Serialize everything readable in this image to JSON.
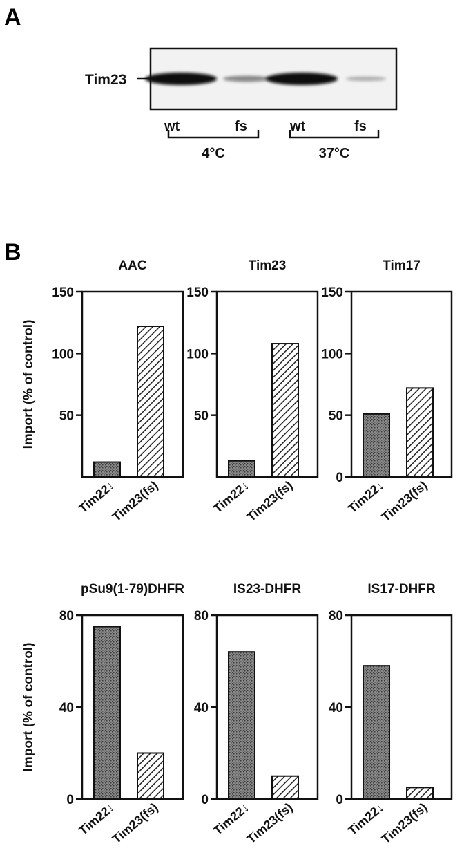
{
  "panel_a": {
    "letter": "A",
    "band_label": "Tim23",
    "lanes": [
      "wt",
      "fs",
      "wt",
      "fs"
    ],
    "lane_band_intensity": [
      1.0,
      0.25,
      1.0,
      0.05
    ],
    "groups": [
      "4°C",
      "37°C"
    ]
  },
  "panel_b": {
    "letter": "B"
  },
  "colors": {
    "filled_bar": "#7a7a7a",
    "hatch_stroke": "#222222",
    "frame": "#111111"
  },
  "chart_data": [
    {
      "type": "bar",
      "title": "AAC",
      "ylabel": "Import (% of control)",
      "categories": [
        "Tim22↓",
        "Tim23(fs)"
      ],
      "values": [
        12,
        122
      ],
      "yticks": [
        50,
        100,
        150
      ],
      "ylim": [
        0,
        150
      ],
      "bar_styles": [
        "filled",
        "hatched"
      ]
    },
    {
      "type": "bar",
      "title": "Tim23",
      "ylabel": "",
      "categories": [
        "Tim22↓",
        "Tim23(fs)"
      ],
      "values": [
        13,
        108
      ],
      "yticks": [
        50,
        100,
        150
      ],
      "ylim": [
        0,
        150
      ],
      "bar_styles": [
        "filled",
        "hatched"
      ]
    },
    {
      "type": "bar",
      "title": "Tim17",
      "ylabel": "",
      "categories": [
        "Tim22↓",
        "Tim23(fs)"
      ],
      "values": [
        51,
        72
      ],
      "yticks": [
        0,
        50,
        100,
        150
      ],
      "ylim": [
        0,
        150
      ],
      "bar_styles": [
        "filled",
        "hatched"
      ]
    },
    {
      "type": "bar",
      "title": "pSu9(1-79)DHFR",
      "ylabel": "Import (% of control)",
      "categories": [
        "Tim22↓",
        "Tim23(fs)"
      ],
      "values": [
        75,
        20
      ],
      "yticks": [
        0,
        40,
        80
      ],
      "ylim": [
        0,
        80
      ],
      "bar_styles": [
        "filled",
        "hatched"
      ]
    },
    {
      "type": "bar",
      "title": "IS23-DHFR",
      "ylabel": "",
      "categories": [
        "Tim22↓",
        "Tim23(fs)"
      ],
      "values": [
        64,
        10
      ],
      "yticks": [
        0,
        40,
        80
      ],
      "ylim": [
        0,
        80
      ],
      "bar_styles": [
        "filled",
        "hatched"
      ]
    },
    {
      "type": "bar",
      "title": "IS17-DHFR",
      "ylabel": "",
      "categories": [
        "Tim22↓",
        "Tim23(fs)"
      ],
      "values": [
        58,
        5
      ],
      "yticks": [
        0,
        40,
        80
      ],
      "ylim": [
        0,
        80
      ],
      "bar_styles": [
        "filled",
        "hatched"
      ]
    }
  ]
}
